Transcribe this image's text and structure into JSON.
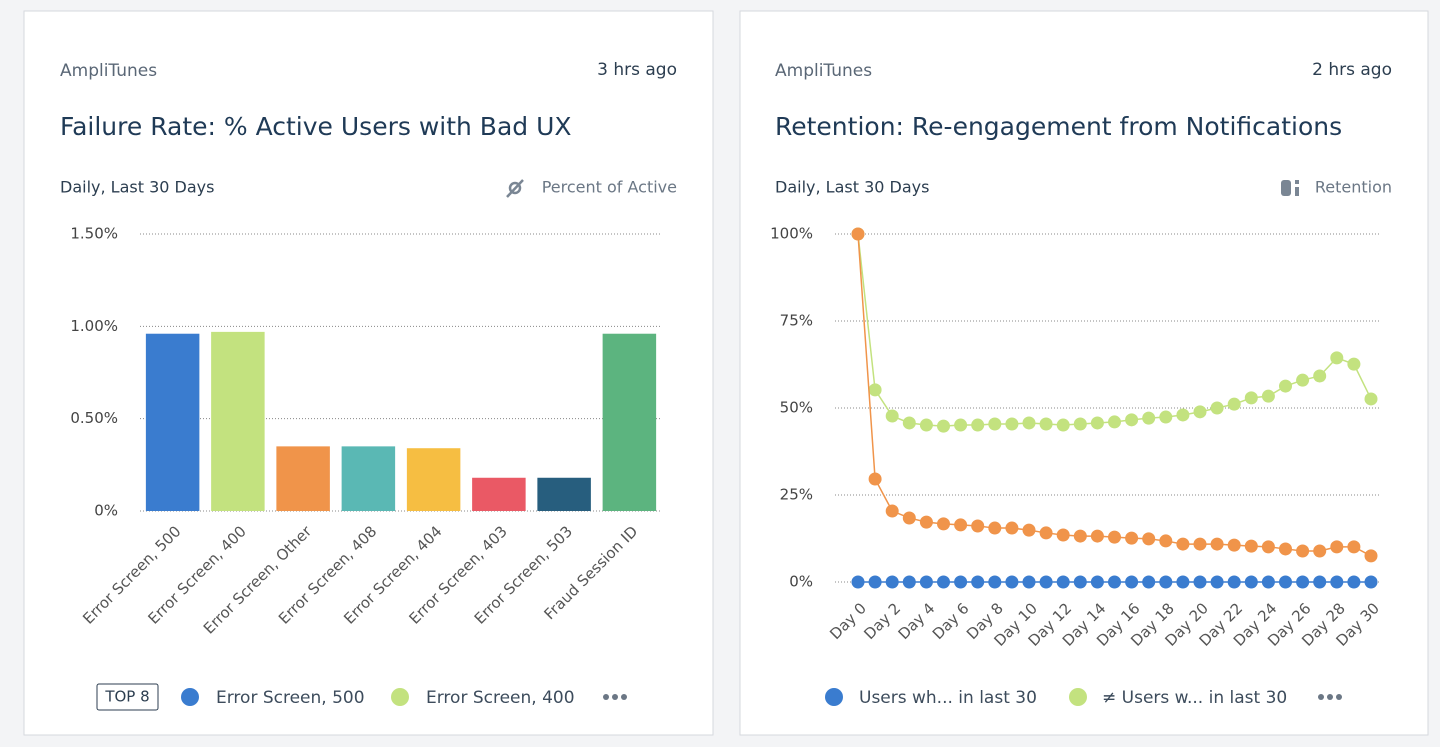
{
  "chart_data": [
    {
      "type": "bar",
      "source": "AmpliTunes",
      "time": "3 hrs ago",
      "title": "Failure Rate: % Active Users with Bad UX",
      "subtitle": "Daily, Last 30 Days",
      "metric": "Percent of Active",
      "categories": [
        "Error Screen, 500",
        "Error Screen, 400",
        "Error Screen, Other",
        "Error Screen, 408",
        "Error Screen, 404",
        "Error Screen, 403",
        "Error Screen, 503",
        "Fraud Session ID"
      ],
      "values": [
        0.96,
        0.97,
        0.35,
        0.35,
        0.34,
        0.18,
        0.18,
        0.96
      ],
      "colors": [
        "#3a7ccf",
        "#c3e27f",
        "#f0944a",
        "#5ab8b4",
        "#f6be42",
        "#ea5965",
        "#275e7e",
        "#5cb47f"
      ],
      "ylim": [
        0,
        1.5
      ],
      "yticks": [
        {
          "value": 0,
          "label": "0%"
        },
        {
          "value": 0.5,
          "label": "0.50%"
        },
        {
          "value": 1,
          "label": "1.00%"
        },
        {
          "value": 1.5,
          "label": "1.50%"
        }
      ],
      "grid": true,
      "legend_badge": "TOP 8"
    },
    {
      "type": "line",
      "source": "AmpliTunes",
      "time": "2 hrs ago",
      "title": "Retention: Re-engagement from Notifications",
      "subtitle": "Daily, Last 30 Days",
      "metric": "Retention",
      "categories": [
        "Day 0",
        null,
        "Day 2",
        null,
        "Day 4",
        null,
        "Day 6",
        null,
        "Day 8",
        null,
        "Day 10",
        null,
        "Day 12",
        null,
        "Day 14",
        null,
        "Day 16",
        null,
        "Day 18",
        null,
        "Day 20",
        null,
        "Day 22",
        null,
        "Day 24",
        null,
        "Day 26",
        null,
        "Day 28",
        null,
        "Day 30"
      ],
      "series": [
        {
          "name": "≠ Users w... in last 30",
          "color": "#c3e27f",
          "values": [
            100,
            55.2,
            47.7,
            45.7,
            45.1,
            44.8,
            45.1,
            45.1,
            45.4,
            45.4,
            45.7,
            45.4,
            45.1,
            45.4,
            45.7,
            46,
            46.6,
            47.1,
            47.4,
            48,
            48.9,
            50,
            51.1,
            52.9,
            53.4,
            56.3,
            58,
            59.2,
            64.4,
            62.6,
            52.6
          ]
        },
        {
          "color": "#f0944a",
          "values": [
            100,
            29.6,
            20.4,
            18.4,
            17.2,
            16.7,
            16.4,
            16.1,
            15.5,
            15.5,
            14.9,
            14.1,
            13.5,
            13.2,
            13.2,
            12.9,
            12.6,
            12.4,
            11.8,
            10.9,
            10.9,
            10.9,
            10.6,
            10.3,
            10.1,
            9.5,
            8.9,
            8.9,
            10.1,
            10.1,
            7.5
          ]
        },
        {
          "name": "Users wh... in last 30",
          "color": "#3a7ccf",
          "values": [
            0,
            0,
            0,
            0,
            0,
            0,
            0,
            0,
            0,
            0,
            0,
            0,
            0,
            0,
            0,
            0,
            0,
            0,
            0,
            0,
            0,
            0,
            0,
            0,
            0,
            0,
            0,
            0,
            0,
            0,
            0
          ]
        }
      ],
      "ylim": [
        0,
        100
      ],
      "yticks": [
        {
          "value": 0,
          "label": "0%"
        },
        {
          "value": 25,
          "label": "25%"
        },
        {
          "value": 50,
          "label": "50%"
        },
        {
          "value": 75,
          "label": "75%"
        },
        {
          "value": 100,
          "label": "100%"
        }
      ],
      "grid": true
    }
  ]
}
